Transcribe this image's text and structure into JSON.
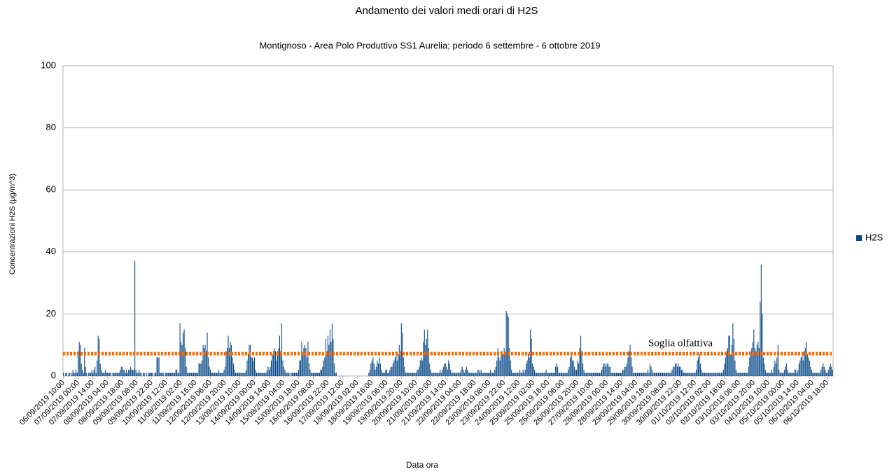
{
  "chart_data": {
    "type": "bar",
    "title": "Andamento dei valori medi orari di H2S",
    "subtitle": "Montignoso - Area Polo Produttivo SS1 Aurelia; periodo 6 settembre - 6 ottobre 2019",
    "y_label": "Concentrazioni H2S (µg/m^3)",
    "x_label": "Data ora",
    "ylim": [
      0,
      100
    ],
    "yticks": [
      0,
      20,
      40,
      60,
      80,
      100
    ],
    "grid": true,
    "legend": "right",
    "threshold": {
      "label": "Soglia olfattiva",
      "value": 7.2,
      "color": "#ff6600"
    },
    "categories": [
      "06/09/2019 10:00",
      null,
      null,
      null,
      null,
      null,
      null,
      null,
      null,
      null,
      null,
      null,
      null,
      null,
      "07/09/2019 00:00",
      null,
      null,
      null,
      null,
      null,
      null,
      null,
      null,
      null,
      null,
      null,
      null,
      null,
      "07/09/2019 14:00",
      null,
      null,
      null,
      null,
      null,
      null,
      null,
      null,
      null,
      null,
      null,
      null,
      null,
      "08/09/2019 04:00",
      null,
      null,
      null,
      null,
      null,
      null,
      null,
      null,
      null,
      null,
      null,
      null,
      null,
      "08/09/2019 18:00",
      null,
      null,
      null,
      null,
      null,
      null,
      null,
      null,
      null,
      null,
      null,
      null,
      null,
      "09/09/2019 08:00",
      null,
      null,
      null,
      null,
      null,
      null,
      null,
      null,
      null,
      null,
      null,
      null,
      null,
      "09/09/2019 22:00",
      null,
      null,
      null,
      null,
      null,
      null,
      null,
      null,
      null,
      null,
      null,
      null,
      null,
      "10/09/2019 12:00",
      null,
      null,
      null,
      null,
      null,
      null,
      null,
      null,
      null,
      null,
      null,
      null,
      null,
      "11/09/2019 02:00",
      null,
      null,
      null,
      null,
      null,
      null,
      null,
      null,
      null,
      null,
      null,
      null,
      null,
      "11/09/2019 16:00",
      null,
      null,
      null,
      null,
      null,
      null,
      null,
      null,
      null,
      null,
      null,
      null,
      null,
      "12/09/2019 06:00",
      null,
      null,
      null,
      null,
      null,
      null,
      null,
      null,
      null,
      null,
      null,
      null,
      null,
      "12/09/2019 20:00",
      null,
      null,
      null,
      null,
      null,
      null,
      null,
      null,
      null,
      null,
      null,
      null,
      null,
      "13/09/2019 10:00",
      null,
      null,
      null,
      null,
      null,
      null,
      null,
      null,
      null,
      null,
      null,
      null,
      null,
      "14/09/2019 00:00",
      null,
      null,
      null,
      null,
      null,
      null,
      null,
      null,
      null,
      null,
      null,
      null,
      null,
      "14/09/2019 14:00",
      null,
      null,
      null,
      null,
      null,
      null,
      null,
      null,
      null,
      null,
      null,
      null,
      null,
      "15/09/2019 04:00",
      null,
      null,
      null,
      null,
      null,
      null,
      null,
      null,
      null,
      null,
      null,
      null,
      null,
      "15/09/2019 18:00",
      null,
      null,
      null,
      null,
      null,
      null,
      null,
      null,
      null,
      null,
      null,
      null,
      null,
      "16/09/2019 08:00",
      null,
      null,
      null,
      null,
      null,
      null,
      null,
      null,
      null,
      null,
      null,
      null,
      null,
      "16/09/2019 22:00",
      null,
      null,
      null,
      null,
      null,
      null,
      null,
      null,
      null,
      null,
      null,
      null,
      null,
      "17/09/2019 12:00",
      null,
      null,
      null,
      null,
      null,
      null,
      null,
      null,
      null,
      null,
      null,
      null,
      null,
      "18/09/2019 02:00",
      null,
      null,
      null,
      null,
      null,
      null,
      null,
      null,
      null,
      null,
      null,
      null,
      null,
      "18/09/2019 16:00",
      null,
      null,
      null,
      null,
      null,
      null,
      null,
      null,
      null,
      null,
      null,
      null,
      null,
      "19/09/2019 06:00",
      null,
      null,
      null,
      null,
      null,
      null,
      null,
      null,
      null,
      null,
      null,
      null,
      null,
      "19/09/2019 20:00",
      null,
      null,
      null,
      null,
      null,
      null,
      null,
      null,
      null,
      null,
      null,
      null,
      null,
      "20/09/2019 10:00",
      null,
      null,
      null,
      null,
      null,
      null,
      null,
      null,
      null,
      null,
      null,
      null,
      null,
      "21/09/2019 00:00",
      null,
      null,
      null,
      null,
      null,
      null,
      null,
      null,
      null,
      null,
      null,
      null,
      null,
      "21/09/2019 14:00",
      null,
      null,
      null,
      null,
      null,
      null,
      null,
      null,
      null,
      null,
      null,
      null,
      null,
      "22/09/2019 04:00",
      null,
      null,
      null,
      null,
      null,
      null,
      null,
      null,
      null,
      null,
      null,
      null,
      null,
      "22/09/2019 18:00",
      null,
      null,
      null,
      null,
      null,
      null,
      null,
      null,
      null,
      null,
      null,
      null,
      null,
      "23/09/2019 08:00",
      null,
      null,
      null,
      null,
      null,
      null,
      null,
      null,
      null,
      null,
      null,
      null,
      null,
      "23/09/2019 22:00",
      null,
      null,
      null,
      null,
      null,
      null,
      null,
      null,
      null,
      null,
      null,
      null,
      null,
      "24/09/2019 12:00",
      null,
      null,
      null,
      null,
      null,
      null,
      null,
      null,
      null,
      null,
      null,
      null,
      null,
      "25/09/2019 02:00",
      null,
      null,
      null,
      null,
      null,
      null,
      null,
      null,
      null,
      null,
      null,
      null,
      null,
      "25/09/2019 16:00",
      null,
      null,
      null,
      null,
      null,
      null,
      null,
      null,
      null,
      null,
      null,
      null,
      null,
      "26/09/2019 06:00",
      null,
      null,
      null,
      null,
      null,
      null,
      null,
      null,
      null,
      null,
      null,
      null,
      null,
      "26/09/2019 20:00",
      null,
      null,
      null,
      null,
      null,
      null,
      null,
      null,
      null,
      null,
      null,
      null,
      null,
      "27/09/2019 10:00",
      null,
      null,
      null,
      null,
      null,
      null,
      null,
      null,
      null,
      null,
      null,
      null,
      null,
      "28/09/2019 00:00",
      null,
      null,
      null,
      null,
      null,
      null,
      null,
      null,
      null,
      null,
      null,
      null,
      null,
      "28/09/2019 14:00",
      null,
      null,
      null,
      null,
      null,
      null,
      null,
      null,
      null,
      null,
      null,
      null,
      null,
      "29/09/2019 04:00",
      null,
      null,
      null,
      null,
      null,
      null,
      null,
      null,
      null,
      null,
      null,
      null,
      null,
      "29/09/2019 18:00",
      null,
      null,
      null,
      null,
      null,
      null,
      null,
      null,
      null,
      null,
      null,
      null,
      null,
      "30/09/2019 08:00",
      null,
      null,
      null,
      null,
      null,
      null,
      null,
      null,
      null,
      null,
      null,
      null,
      null,
      "30/09/2019 22:00",
      null,
      null,
      null,
      null,
      null,
      null,
      null,
      null,
      null,
      null,
      null,
      null,
      null,
      "01/10/2019 12:00",
      null,
      null,
      null,
      null,
      null,
      null,
      null,
      null,
      null,
      null,
      null,
      null,
      null,
      "02/10/2019 02:00",
      null,
      null,
      null,
      null,
      null,
      null,
      null,
      null,
      null,
      null,
      null,
      null,
      null,
      "02/10/2019 16:00",
      null,
      null,
      null,
      null,
      null,
      null,
      null,
      null,
      null,
      null,
      null,
      null,
      null,
      "03/10/2019 06:00",
      null,
      null,
      null,
      null,
      null,
      null,
      null,
      null,
      null,
      null,
      null,
      null,
      null,
      "03/10/2019 20:00",
      null,
      null,
      null,
      null,
      null,
      null,
      null,
      null,
      null,
      null,
      null,
      null,
      null,
      "04/10/2019 10:00",
      null,
      null,
      null,
      null,
      null,
      null,
      null,
      null,
      null,
      null,
      null,
      null,
      null,
      "05/10/2019 00:00",
      null,
      null,
      null,
      null,
      null,
      null,
      null,
      null,
      null,
      null,
      null,
      null,
      null,
      "05/10/2019 14:00",
      null,
      null,
      null,
      null,
      null,
      null,
      null,
      null,
      null,
      null,
      null,
      null,
      null,
      "06/10/2019 04:00",
      null,
      null,
      null,
      null,
      null,
      null,
      null,
      null,
      null,
      null,
      null,
      null,
      null,
      "06/10/2019 18:00",
      null,
      null,
      null,
      null,
      null
    ],
    "series": [
      {
        "name": "H2S",
        "color": "#004586",
        "values": [
          1,
          0,
          1,
          1,
          0,
          1,
          1,
          0,
          1,
          2,
          1,
          1,
          2,
          1,
          8,
          11,
          10,
          4,
          2,
          1,
          9,
          3,
          1,
          0,
          1,
          1,
          1,
          2,
          1,
          2,
          3,
          1,
          5,
          13,
          12,
          4,
          2,
          1,
          1,
          1,
          2,
          1,
          1,
          1,
          1,
          1,
          0,
          1,
          1,
          1,
          1,
          1,
          1,
          1,
          2,
          3,
          3,
          2,
          2,
          1,
          2,
          1,
          2,
          2,
          3,
          2,
          2,
          2,
          37,
          2,
          1,
          1,
          2,
          1,
          1,
          0,
          1,
          1,
          0,
          1,
          0,
          1,
          1,
          1,
          1,
          1,
          0,
          1,
          1,
          6,
          6,
          6,
          1,
          1,
          1,
          1,
          0,
          1,
          1,
          1,
          1,
          1,
          1,
          1,
          1,
          1,
          1,
          2,
          2,
          1,
          1,
          17,
          11,
          10,
          14,
          15,
          9,
          3,
          1,
          1,
          1,
          1,
          1,
          1,
          1,
          1,
          1,
          1,
          1,
          4,
          4,
          4,
          5,
          10,
          9,
          10,
          8,
          14,
          6,
          3,
          2,
          1,
          1,
          1,
          1,
          1,
          1,
          1,
          2,
          1,
          1,
          1,
          1,
          2,
          3,
          8,
          9,
          13,
          9,
          11,
          10,
          6,
          4,
          2,
          1,
          1,
          1,
          1,
          1,
          1,
          1,
          1,
          1,
          1,
          2,
          5,
          7,
          10,
          10,
          6,
          6,
          5,
          6,
          2,
          1,
          1,
          1,
          1,
          1,
          1,
          1,
          1,
          1,
          1,
          2,
          3,
          2,
          3,
          5,
          7,
          8,
          9,
          8,
          5,
          8,
          9,
          13,
          8,
          17,
          5,
          3,
          2,
          1,
          1,
          1,
          1,
          0,
          1,
          1,
          1,
          1,
          1,
          1,
          1,
          2,
          5,
          5,
          11,
          7,
          9,
          10,
          9,
          6,
          11,
          4,
          2,
          1,
          1,
          1,
          1,
          1,
          1,
          1,
          1,
          1,
          2,
          2,
          3,
          5,
          6,
          12,
          8,
          13,
          10,
          15,
          11,
          17,
          12,
          4,
          1,
          1,
          0,
          0,
          0,
          0,
          0,
          0,
          0,
          0,
          0,
          0,
          0,
          0,
          0,
          0,
          0,
          0,
          0,
          0,
          0,
          0,
          0,
          0,
          0,
          0,
          0,
          0,
          0,
          0,
          0,
          0,
          1,
          2,
          4,
          5,
          6,
          4,
          2,
          3,
          5,
          4,
          6,
          4,
          2,
          1,
          1,
          1,
          2,
          2,
          1,
          1,
          2,
          3,
          3,
          4,
          5,
          6,
          8,
          5,
          7,
          10,
          8,
          17,
          14,
          6,
          3,
          1,
          1,
          1,
          1,
          1,
          1,
          1,
          1,
          1,
          1,
          1,
          2,
          2,
          3,
          5,
          6,
          5,
          11,
          15,
          10,
          12,
          15,
          9,
          4,
          2,
          1,
          1,
          1,
          1,
          1,
          1,
          1,
          1,
          2,
          1,
          2,
          3,
          4,
          4,
          3,
          2,
          5,
          4,
          2,
          1,
          1,
          1,
          1,
          1,
          1,
          1,
          1,
          1,
          2,
          3,
          2,
          1,
          2,
          3,
          2,
          1,
          1,
          1,
          1,
          1,
          1,
          1,
          1,
          1,
          2,
          2,
          1,
          2,
          1,
          1,
          1,
          1,
          1,
          1,
          1,
          1,
          2,
          1,
          1,
          1,
          2,
          3,
          5,
          9,
          6,
          5,
          8,
          8,
          7,
          9,
          7,
          21,
          20,
          19,
          9,
          5,
          2,
          1,
          1,
          1,
          1,
          1,
          1,
          1,
          2,
          1,
          1,
          2,
          1,
          2,
          4,
          5,
          7,
          6,
          15,
          12,
          4,
          3,
          2,
          1,
          1,
          1,
          1,
          1,
          1,
          1,
          1,
          1,
          1,
          2,
          1,
          1,
          1,
          1,
          1,
          1,
          1,
          1,
          3,
          4,
          3,
          1,
          1,
          1,
          1,
          1,
          1,
          1,
          1,
          1,
          2,
          3,
          6,
          7,
          5,
          5,
          3,
          2,
          2,
          5,
          4,
          9,
          13,
          8,
          4,
          2,
          1,
          1,
          1,
          1,
          1,
          1,
          1,
          1,
          1,
          1,
          1,
          1,
          1,
          1,
          1,
          1,
          2,
          3,
          4,
          4,
          3,
          4,
          4,
          3,
          3,
          1,
          1,
          1,
          1,
          1,
          1,
          1,
          1,
          1,
          1,
          1,
          2,
          2,
          3,
          3,
          4,
          6,
          8,
          10,
          6,
          3,
          1,
          1,
          1,
          1,
          1,
          1,
          1,
          1,
          1,
          1,
          1,
          1,
          1,
          1,
          2,
          1,
          4,
          3,
          2,
          1,
          1,
          1,
          1,
          1,
          1,
          1,
          1,
          1,
          1,
          1,
          1,
          1,
          1,
          1,
          1,
          1,
          1,
          2,
          3,
          3,
          4,
          4,
          3,
          4,
          3,
          3,
          2,
          2,
          1,
          1,
          1,
          1,
          1,
          1,
          1,
          1,
          1,
          1,
          1,
          1,
          2,
          5,
          6,
          7,
          4,
          2,
          1,
          1,
          1,
          1,
          1,
          1,
          1,
          1,
          1,
          1,
          1,
          1,
          1,
          1,
          1,
          1,
          1,
          1,
          1,
          1,
          2,
          4,
          6,
          8,
          9,
          13,
          13,
          7,
          10,
          17,
          12,
          5,
          2,
          1,
          1,
          1,
          1,
          1,
          1,
          1,
          1,
          1,
          1,
          1,
          3,
          6,
          8,
          9,
          11,
          15,
          9,
          8,
          10,
          11,
          9,
          24,
          36,
          20,
          6,
          4,
          2,
          1,
          1,
          1,
          1,
          1,
          2,
          1,
          3,
          5,
          4,
          6,
          10,
          2,
          1,
          1,
          1,
          1,
          2,
          3,
          4,
          2,
          1,
          1,
          1,
          1,
          1,
          1,
          2,
          2,
          1,
          2,
          4,
          5,
          6,
          7,
          5,
          8,
          9,
          11,
          7,
          6,
          5,
          3,
          2,
          1,
          1,
          1,
          1,
          1,
          1,
          1,
          1,
          2,
          3,
          4,
          3,
          2,
          1,
          1,
          2,
          3,
          4,
          3,
          2
        ]
      }
    ]
  }
}
